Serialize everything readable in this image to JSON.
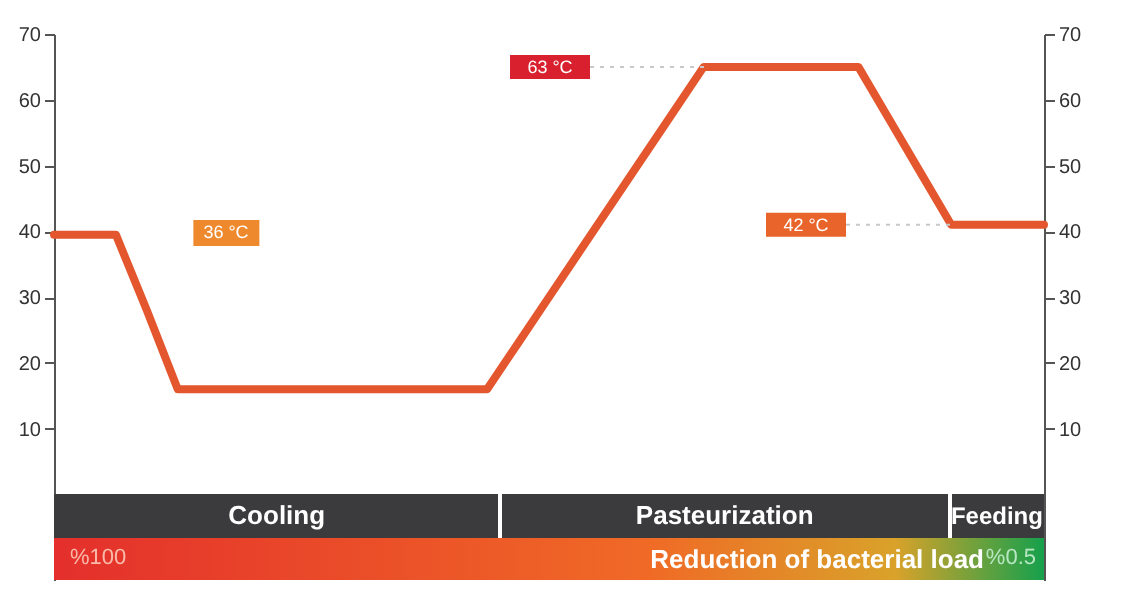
{
  "chart_data": {
    "type": "line",
    "categories": [
      null,
      null,
      null,
      null,
      null,
      null,
      null,
      null,
      null,
      null,
      null,
      null,
      null,
      null,
      null,
      null,
      null,
      null,
      null,
      null,
      null,
      null,
      null,
      null,
      null,
      null,
      null,
      null,
      null,
      null,
      null,
      null,
      null
    ],
    "series": [
      {
        "color": "#e4572e",
        "values": [
          39.5,
          39.5,
          39.5,
          28,
          16,
          16,
          16,
          16,
          16,
          16,
          16,
          16,
          16,
          16,
          16,
          23,
          30,
          37,
          44,
          51,
          58,
          65,
          65,
          65,
          65,
          65,
          65,
          57,
          49,
          41,
          41,
          41,
          41
        ]
      }
    ],
    "ylim": [
      -13,
      70
    ],
    "yticks": [
      10,
      20,
      30,
      40,
      50,
      60,
      70
    ],
    "y2lim": [
      -13,
      70
    ],
    "y2ticks": [
      10,
      20,
      30,
      40,
      50,
      60,
      70
    ],
    "tick_labels": "y",
    "grid": false,
    "marker": "none",
    "line_style": "solid",
    "annotations": [
      {
        "text": "63 °C",
        "y": 65
      },
      {
        "text": "42 °C",
        "y": 41
      },
      "36 °C",
      "Cooling",
      "Pasteurization",
      "Feeding",
      "Reduction of bacterial load",
      "%100",
      "%0.5"
    ]
  }
}
